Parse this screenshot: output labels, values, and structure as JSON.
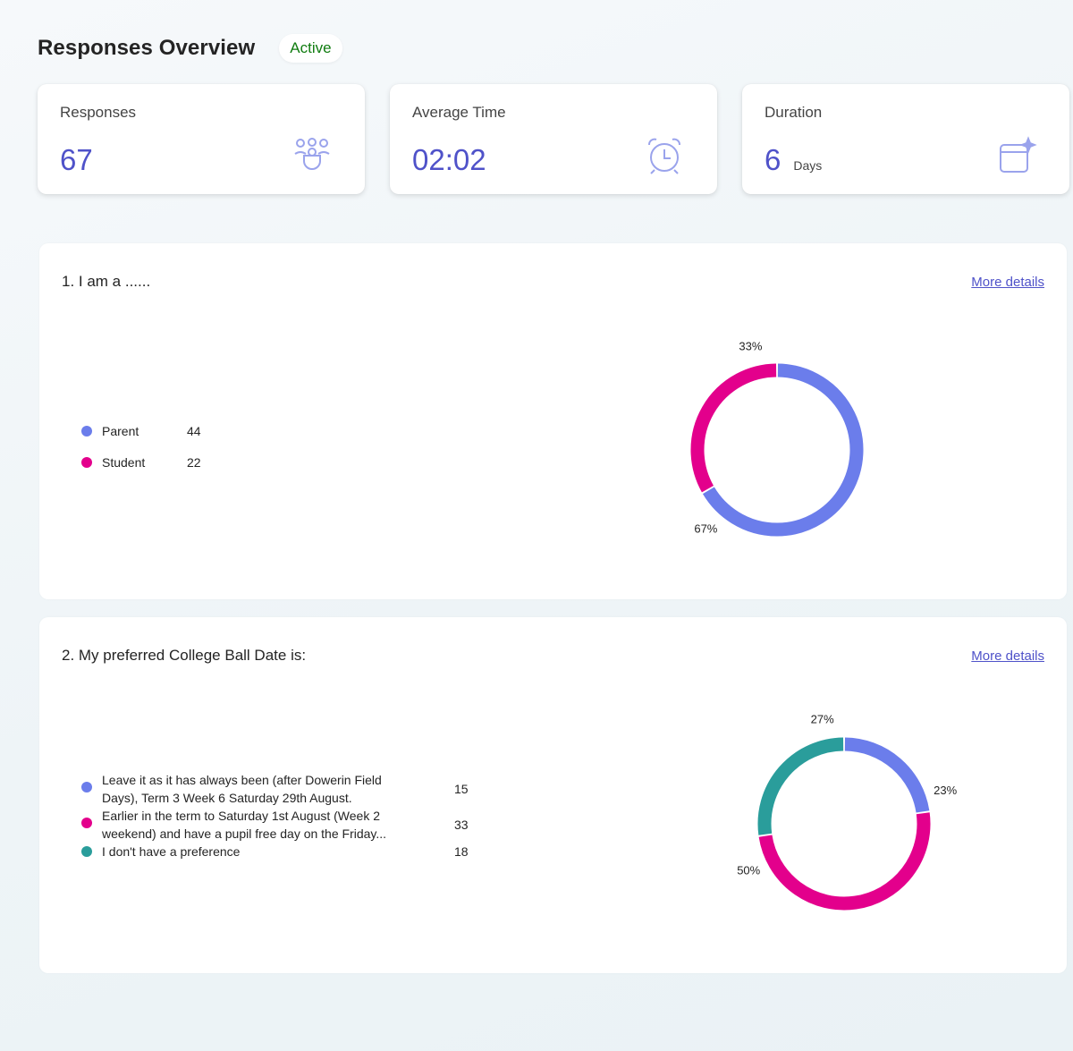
{
  "header": {
    "title": "Responses Overview",
    "status": "Active"
  },
  "stats": [
    {
      "label": "Responses",
      "value": "67",
      "icon": "people-icon"
    },
    {
      "label": "Average Time",
      "value": "02:02",
      "icon": "alarm-clock-icon"
    },
    {
      "label": "Duration",
      "value": "6",
      "unit": "Days",
      "icon": "calendar-sparkle-icon"
    }
  ],
  "questions": [
    {
      "title": "1. I am a ......",
      "more_label": "More details",
      "options": [
        {
          "label": "Parent",
          "count": "44",
          "color": "#6b7deb"
        },
        {
          "label": "Student",
          "count": "22",
          "color": "#e3008c"
        }
      ],
      "percent_labels": [
        "67%",
        "33%"
      ]
    },
    {
      "title": "2. My preferred College Ball Date is:",
      "more_label": "More details",
      "options": [
        {
          "label_line1": "Leave it as it has always been (after Dowerin Field",
          "label_line2": "Days), Term 3 Week 6 Saturday 29th August.",
          "count": "15",
          "color": "#6b7deb"
        },
        {
          "label_line1": "Earlier in the term to Saturday 1st August (Week 2",
          "label_line2": "weekend) and have a pupil free day on the Friday...",
          "count": "33",
          "color": "#e3008c"
        },
        {
          "label": "I don't have a preference",
          "count": "18",
          "color": "#2a9d9b"
        }
      ],
      "percent_labels": [
        "23%",
        "50%",
        "27%"
      ]
    }
  ],
  "chart_data": [
    {
      "type": "pie",
      "title": "1. I am a ......",
      "categories": [
        "Parent",
        "Student"
      ],
      "values": [
        44,
        22
      ],
      "percentages": [
        67,
        33
      ],
      "colors": [
        "#6b7deb",
        "#e3008c"
      ]
    },
    {
      "type": "pie",
      "title": "2. My preferred College Ball Date is:",
      "categories": [
        "Leave it as it has always been (after Dowerin Field Days), Term 3 Week 6 Saturday 29th August.",
        "Earlier in the term to Saturday 1st August (Week 2 weekend) and have a pupil free day on the Friday...",
        "I don't have a preference"
      ],
      "values": [
        15,
        33,
        18
      ],
      "percentages": [
        23,
        50,
        27
      ],
      "colors": [
        "#6b7deb",
        "#e3008c",
        "#2a9d9b"
      ]
    }
  ]
}
